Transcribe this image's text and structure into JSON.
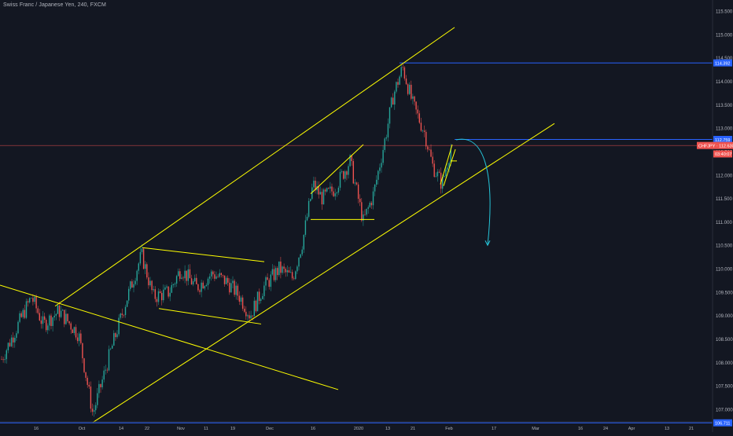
{
  "title": "Swiss Franc / Japanese Yen, 240, FXCM",
  "colors": {
    "background": "#131722",
    "axis_text": "#b2b5be",
    "up": "#26a69a",
    "down": "#ef5350",
    "trendline": "#ffff00",
    "level_line": "#2962ff",
    "current_price_line": "#ef5350",
    "forecast_arrow": "#26c6da"
  },
  "price_axis": {
    "ticks": [
      "115.500",
      "115.000",
      "114.500",
      "114.000",
      "113.500",
      "113.000",
      "112.500",
      "112.000",
      "111.500",
      "111.000",
      "110.500",
      "110.000",
      "109.500",
      "109.000",
      "108.500",
      "108.000",
      "107.500",
      "107.000"
    ],
    "labels": [
      {
        "text": "114.392",
        "price": 114.392,
        "kind": "level"
      },
      {
        "text": "112.759",
        "price": 112.759,
        "kind": "level"
      },
      {
        "text": "CHFJPY · 112.630",
        "price": 112.63,
        "kind": "current"
      },
      {
        "text": "03:40:07",
        "price": 112.45,
        "kind": "timer"
      },
      {
        "text": "106.711",
        "price": 106.711,
        "kind": "level"
      }
    ]
  },
  "time_axis": {
    "labels": [
      "16",
      "Oct",
      "14",
      "22",
      "Nov",
      "11",
      "19",
      "Dec",
      "16",
      "2020",
      "13",
      "21",
      "Feb",
      "17",
      "Mar",
      "16",
      "24",
      "Apr",
      "13",
      "21"
    ]
  },
  "chart_data": {
    "type": "candlestick",
    "symbol": "CHFJPY",
    "interval": "240",
    "source": "FXCM",
    "ylim": [
      106.85,
      115.75
    ],
    "price_path": [
      {
        "t": 0,
        "p": 108.0
      },
      {
        "t": 40,
        "p": 109.4
      },
      {
        "t": 55,
        "p": 108.8
      },
      {
        "t": 75,
        "p": 109.1
      },
      {
        "t": 100,
        "p": 108.6
      },
      {
        "t": 118,
        "p": 106.9
      },
      {
        "t": 140,
        "p": 108.2
      },
      {
        "t": 160,
        "p": 109.3
      },
      {
        "t": 180,
        "p": 110.3
      },
      {
        "t": 195,
        "p": 109.4
      },
      {
        "t": 215,
        "p": 109.5
      },
      {
        "t": 230,
        "p": 110.0
      },
      {
        "t": 250,
        "p": 109.6
      },
      {
        "t": 270,
        "p": 109.9
      },
      {
        "t": 290,
        "p": 109.7
      },
      {
        "t": 305,
        "p": 109.4
      },
      {
        "t": 318,
        "p": 109.0
      },
      {
        "t": 335,
        "p": 109.6
      },
      {
        "t": 355,
        "p": 110.0
      },
      {
        "t": 372,
        "p": 109.8
      },
      {
        "t": 385,
        "p": 110.6
      },
      {
        "t": 398,
        "p": 111.8
      },
      {
        "t": 410,
        "p": 111.5
      },
      {
        "t": 425,
        "p": 111.7
      },
      {
        "t": 445,
        "p": 112.3
      },
      {
        "t": 462,
        "p": 111.0
      },
      {
        "t": 475,
        "p": 111.6
      },
      {
        "t": 490,
        "p": 112.8
      },
      {
        "t": 500,
        "p": 113.7
      },
      {
        "t": 512,
        "p": 114.3
      },
      {
        "t": 525,
        "p": 113.5
      },
      {
        "t": 540,
        "p": 112.9
      },
      {
        "t": 550,
        "p": 112.2
      },
      {
        "t": 562,
        "p": 111.8
      },
      {
        "t": 575,
        "p": 112.7
      }
    ],
    "horizontal_levels": [
      114.392,
      112.759,
      106.711
    ],
    "current_price": 112.63,
    "drawings": [
      {
        "kind": "channel-upper",
        "from": {
          "t": 70,
          "p": 109.2
        },
        "to": {
          "t": 578,
          "p": 115.15
        }
      },
      {
        "kind": "channel-lower",
        "from": {
          "t": 118,
          "p": 106.72
        },
        "to": {
          "t": 705,
          "p": 113.1
        }
      },
      {
        "kind": "falling-line",
        "from": {
          "t": 0,
          "p": 109.65
        },
        "to": {
          "t": 430,
          "p": 107.42
        }
      },
      {
        "kind": "flag-top",
        "from": {
          "t": 181,
          "p": 110.45
        },
        "to": {
          "t": 336,
          "p": 110.15
        }
      },
      {
        "kind": "flag-bottom",
        "from": {
          "t": 202,
          "p": 109.15
        },
        "to": {
          "t": 332,
          "p": 108.82
        }
      },
      {
        "kind": "triangle-top",
        "from": {
          "t": 395,
          "p": 111.6
        },
        "to": {
          "t": 462,
          "p": 112.65
        }
      },
      {
        "kind": "triangle-base",
        "from": {
          "t": 395,
          "p": 111.05
        },
        "to": {
          "t": 476,
          "p": 111.05
        }
      },
      {
        "kind": "wedge",
        "from": {
          "t": 560,
          "p": 111.8
        },
        "to": {
          "t": 575,
          "p": 112.65
        }
      },
      {
        "kind": "forecast-arrow",
        "from": {
          "t": 580,
          "p": 112.75
        },
        "to": {
          "t": 620,
          "p": 110.5
        }
      }
    ]
  }
}
